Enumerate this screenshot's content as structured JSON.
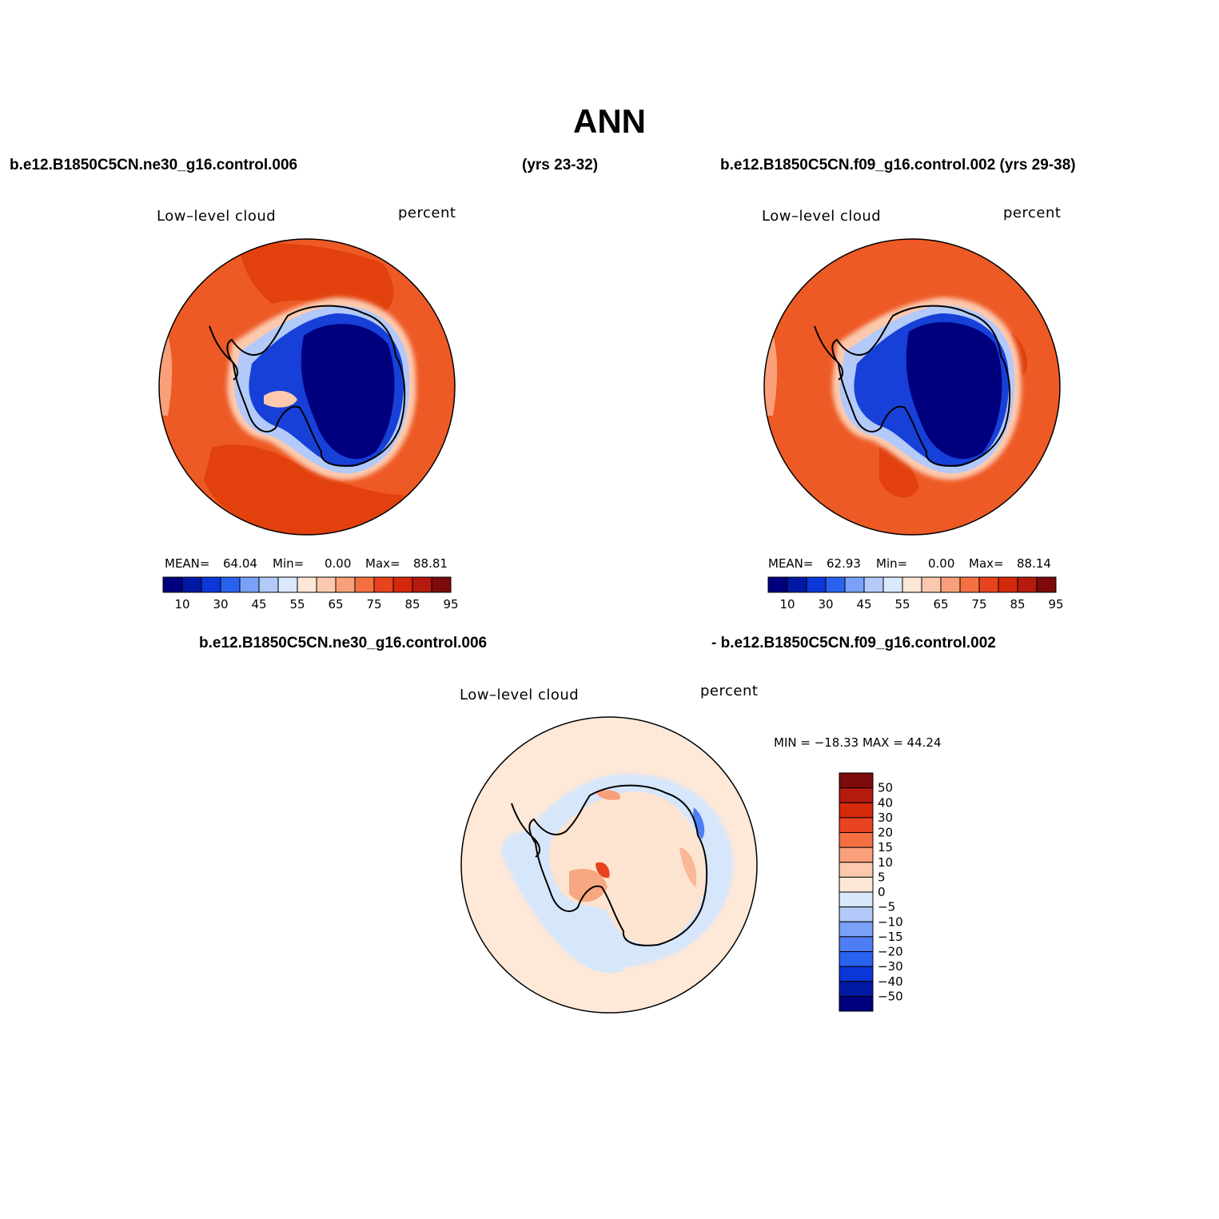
{
  "title": "ANN",
  "case1": "b.e12.B1850C5CN.ne30_g16.control.006",
  "case1_years": "(yrs 23-32)",
  "case2_full": "b.e12.B1850C5CN.f09_g16.control.002 (yrs 29-38)",
  "diff_case1": "b.e12.B1850C5CN.ne30_g16.control.006",
  "diff_case2": "- b.e12.B1850C5CN.f09_g16.control.002",
  "panels": [
    {
      "variable": "Low–level cloud",
      "units": "percent",
      "mean_label": "MEAN=",
      "mean": "64.04",
      "min_label": "Min=",
      "min": "0.00",
      "max_label": "Max=",
      "max": "88.81"
    },
    {
      "variable": "Low–level cloud",
      "units": "percent",
      "mean_label": "MEAN=",
      "mean": "62.93",
      "min_label": "Min=",
      "min": "0.00",
      "max_label": "Max=",
      "max": "88.14"
    },
    {
      "variable": "Low–level cloud",
      "units": "percent",
      "minmax": "MIN = −18.33 MAX =  44.24"
    }
  ],
  "colorbar_main": {
    "colors": [
      "#00007f",
      "#0019a5",
      "#0b37d8",
      "#2a62f0",
      "#7aa0f7",
      "#b2c9f9",
      "#d9e8fb",
      "#fde7d6",
      "#fcc9ae",
      "#f9a07a",
      "#f47040",
      "#e8431f",
      "#d42a0b",
      "#b51a0e",
      "#7d0b0b"
    ],
    "tick_labels": [
      "10",
      "30",
      "45",
      "55",
      "65",
      "75",
      "85",
      "95"
    ]
  },
  "colorbar_diff": {
    "colors": [
      "#00007f",
      "#0019a5",
      "#0b37d8",
      "#2a62f0",
      "#4f7ef4",
      "#7aa0f7",
      "#b2c9f9",
      "#d9e8fb",
      "#fde7d6",
      "#fcc9ae",
      "#f9a07a",
      "#f47040",
      "#e8431f",
      "#d42a0b",
      "#b51a0e",
      "#7d0b0b"
    ],
    "tick_labels": [
      "50",
      "40",
      "30",
      "20",
      "15",
      "10",
      "5",
      "0",
      "−5",
      "−10",
      "−15",
      "−20",
      "−30",
      "−40",
      "−50"
    ]
  },
  "map_colors": {
    "ocean_main": "#ee5a25",
    "ocean_dark": "#e2410d",
    "ice_edge_light": "#fcc9ae",
    "ice_core": "#00007f",
    "ice_blue": "#1640d8",
    "diff_background": "#fee8d8",
    "diff_neg": "#d6e6fb",
    "diff_pos": "#f7a882"
  },
  "chart_data": [
    {
      "type": "heatmap",
      "title": "ANN",
      "subtitle": "b.e12.B1850C5CN.ne30_g16.control.006 (yrs 23-32)",
      "variable": "Low–level cloud",
      "units": "percent",
      "mean": 64.04,
      "min": 0.0,
      "max": 88.81,
      "levels": [
        10,
        20,
        30,
        40,
        45,
        50,
        55,
        60,
        65,
        70,
        75,
        80,
        85,
        90,
        95
      ]
    },
    {
      "type": "heatmap",
      "subtitle": "b.e12.B1850C5CN.f09_g16.control.002 (yrs 29-38)",
      "variable": "Low–level cloud",
      "units": "percent",
      "mean": 62.93,
      "min": 0.0,
      "max": 88.14,
      "levels": [
        10,
        20,
        30,
        40,
        45,
        50,
        55,
        60,
        65,
        70,
        75,
        80,
        85,
        90,
        95
      ]
    },
    {
      "type": "heatmap",
      "subtitle": "b.e12.B1850C5CN.ne30_g16.control.006 - b.e12.B1850C5CN.f09_g16.control.002",
      "variable": "Low–level cloud",
      "units": "percent",
      "min": -18.33,
      "max": 44.24,
      "levels": [
        -50,
        -40,
        -30,
        -20,
        -15,
        -10,
        -5,
        0,
        5,
        10,
        15,
        20,
        30,
        40,
        50
      ]
    }
  ]
}
